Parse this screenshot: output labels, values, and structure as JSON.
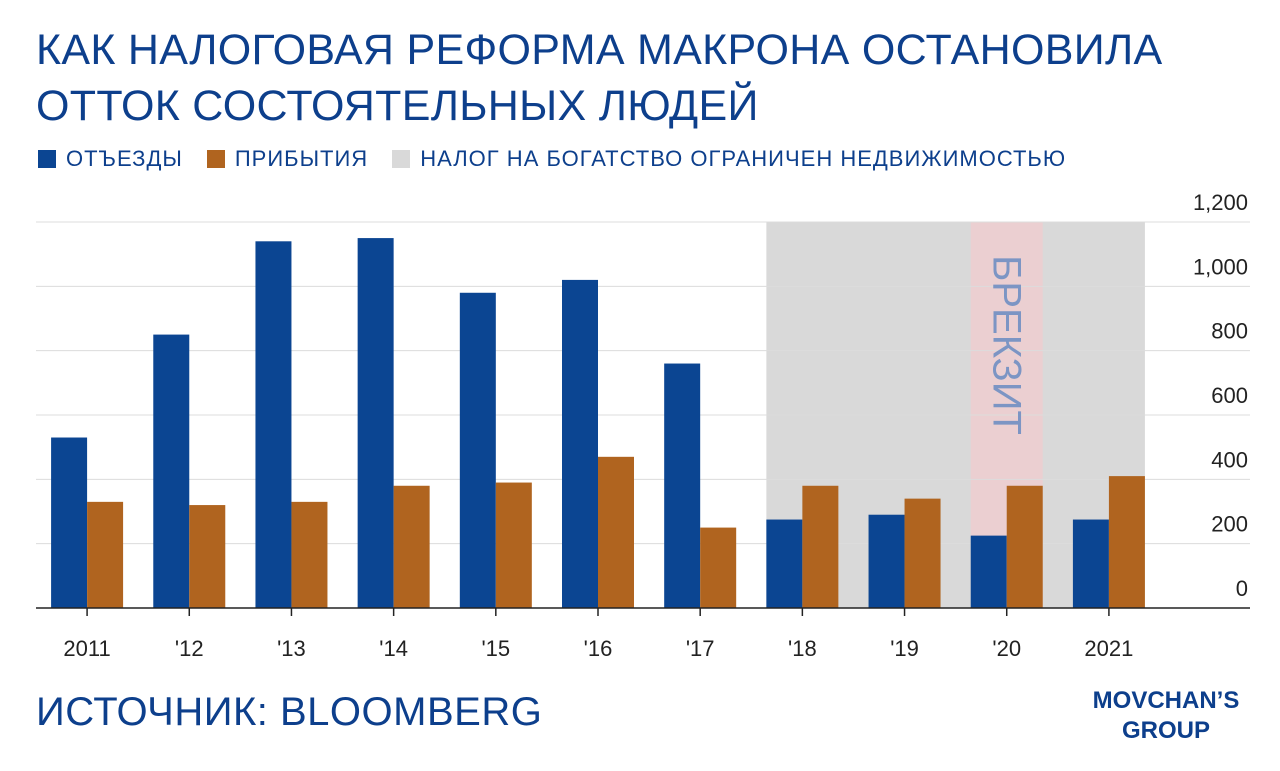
{
  "title": {
    "line1": "КАК НАЛОГОВАЯ РЕФОРМА МАКРОНА ОСТАНОВИЛА",
    "line2": "ОТТОК СОСТОЯТЕЛЬНЫХ ЛЮДЕЙ"
  },
  "legend": {
    "departures": "ОТЪЕЗДЫ",
    "arrivals": "ПРИБЫТИЯ",
    "tax_period": "НАЛОГ НА БОГАТСТВО ОГРАНИЧЕН НЕДВИЖИМОСТЬЮ"
  },
  "colors": {
    "title": "#0d3f8c",
    "departures": "#0b4592",
    "arrivals": "#b0641f",
    "tax_shade": "#d9d9d9",
    "brexit_shade": "#ebcfd1",
    "brexit_text": "#7c95c4",
    "grid": "#dcdcdc",
    "axis": "#222222"
  },
  "chart_data": {
    "type": "bar",
    "categories": [
      "2011",
      "'12",
      "'13",
      "'14",
      "'15",
      "'16",
      "'17",
      "'18",
      "'19",
      "'20",
      "2021"
    ],
    "series": [
      {
        "name": "ОТЪЕЗДЫ",
        "values": [
          530,
          850,
          1140,
          1150,
          980,
          1020,
          760,
          275,
          290,
          225,
          275
        ]
      },
      {
        "name": "ПРИБЫТИЯ",
        "values": [
          330,
          320,
          330,
          380,
          390,
          470,
          250,
          380,
          340,
          380,
          410
        ]
      }
    ],
    "ylim": [
      0,
      1200
    ],
    "yticks": [
      0,
      200,
      400,
      600,
      800,
      1000,
      1200
    ],
    "ytick_labels": [
      "0",
      "200",
      "400",
      "600",
      "800",
      "1,000",
      "1,200"
    ],
    "y_axis_side": "right",
    "grid": true,
    "tax_period_span": [
      "'18",
      "2021"
    ],
    "annotation": {
      "text": "БРЕКЗИТ",
      "at": "'20"
    }
  },
  "source": "ИСТОЧНИК: BLOOMBERG",
  "logo": {
    "line1": "MOVCHAN’S",
    "line2": "GROUP"
  }
}
